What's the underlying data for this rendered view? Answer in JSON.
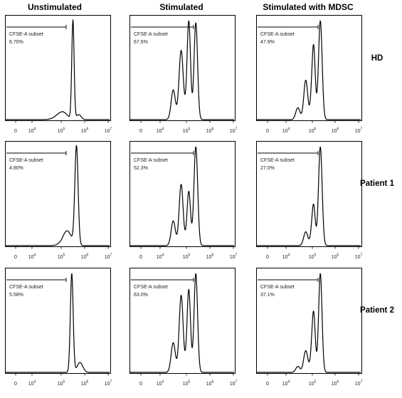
{
  "columns": [
    "Unstimulated",
    "Stimulated",
    "Stimulated with MDSC"
  ],
  "rows": [
    "HD",
    "Patient 1",
    "Patient 2"
  ],
  "gate_name": "CFSE-A subset",
  "x_tick_labels": [
    {
      "base": "0",
      "exp": ""
    },
    {
      "base": "10",
      "exp": "4"
    },
    {
      "base": "10",
      "exp": "5"
    },
    {
      "base": "10",
      "exp": "6"
    },
    {
      "base": "10",
      "exp": "7"
    }
  ],
  "chart_data": {
    "type": "histogram",
    "x_axis": "CFSE-A (biexponential)",
    "x_ticks_log10": [
      4,
      5,
      6,
      7
    ],
    "gate": "CFSE-A subset",
    "panels": [
      {
        "row": "HD",
        "column": "Unstimulated",
        "gate_percent": "6.70%",
        "peaks": [
          {
            "log10": 5.5,
            "height": 1.0,
            "width": 0.05
          },
          {
            "log10": 5.05,
            "height": 0.08,
            "width": 0.2
          },
          {
            "log10": 5.75,
            "height": 0.05,
            "width": 0.1
          }
        ]
      },
      {
        "row": "HD",
        "column": "Stimulated",
        "gate_percent": "67.6%",
        "peaks": [
          {
            "log10": 4.8,
            "height": 0.7,
            "width": 0.08
          },
          {
            "log10": 5.1,
            "height": 1.0,
            "width": 0.075
          },
          {
            "log10": 5.4,
            "height": 0.98,
            "width": 0.075
          },
          {
            "log10": 4.5,
            "height": 0.3,
            "width": 0.08
          }
        ]
      },
      {
        "row": "HD",
        "column": "Stimulated with MDSC",
        "gate_percent": "47.9%",
        "peaks": [
          {
            "log10": 5.35,
            "height": 1.0,
            "width": 0.08
          },
          {
            "log10": 5.05,
            "height": 0.76,
            "width": 0.075
          },
          {
            "log10": 4.75,
            "height": 0.4,
            "width": 0.075
          },
          {
            "log10": 4.45,
            "height": 0.12,
            "width": 0.08
          }
        ]
      },
      {
        "row": "Patient 1",
        "column": "Unstimulated",
        "gate_percent": "4.80%",
        "peaks": [
          {
            "log10": 5.65,
            "height": 1.0,
            "width": 0.07
          },
          {
            "log10": 5.25,
            "height": 0.15,
            "width": 0.18
          }
        ]
      },
      {
        "row": "Patient 1",
        "column": "Stimulated",
        "gate_percent": "52.3%",
        "peaks": [
          {
            "log10": 5.4,
            "height": 1.0,
            "width": 0.08
          },
          {
            "log10": 5.1,
            "height": 0.55,
            "width": 0.075
          },
          {
            "log10": 4.8,
            "height": 0.62,
            "width": 0.075
          },
          {
            "log10": 4.5,
            "height": 0.25,
            "width": 0.08
          }
        ]
      },
      {
        "row": "Patient 1",
        "column": "Stimulated with MDSC",
        "gate_percent": "27.0%",
        "peaks": [
          {
            "log10": 5.35,
            "height": 1.0,
            "width": 0.08
          },
          {
            "log10": 5.05,
            "height": 0.42,
            "width": 0.075
          },
          {
            "log10": 4.75,
            "height": 0.14,
            "width": 0.08
          }
        ]
      },
      {
        "row": "Patient 2",
        "column": "Unstimulated",
        "gate_percent": "5.58%",
        "peaks": [
          {
            "log10": 5.45,
            "height": 1.0,
            "width": 0.06
          },
          {
            "log10": 5.8,
            "height": 0.1,
            "width": 0.12
          }
        ]
      },
      {
        "row": "Patient 2",
        "column": "Stimulated",
        "gate_percent": "63.0%",
        "peaks": [
          {
            "log10": 4.8,
            "height": 0.78,
            "width": 0.075
          },
          {
            "log10": 5.1,
            "height": 0.84,
            "width": 0.075
          },
          {
            "log10": 5.4,
            "height": 1.0,
            "width": 0.075
          },
          {
            "log10": 4.5,
            "height": 0.3,
            "width": 0.08
          }
        ]
      },
      {
        "row": "Patient 2",
        "column": "Stimulated with MDSC",
        "gate_percent": "37.1%",
        "peaks": [
          {
            "log10": 5.35,
            "height": 1.0,
            "width": 0.075
          },
          {
            "log10": 5.05,
            "height": 0.62,
            "width": 0.075
          },
          {
            "log10": 4.75,
            "height": 0.22,
            "width": 0.08
          },
          {
            "log10": 4.45,
            "height": 0.06,
            "width": 0.08
          }
        ]
      }
    ]
  }
}
